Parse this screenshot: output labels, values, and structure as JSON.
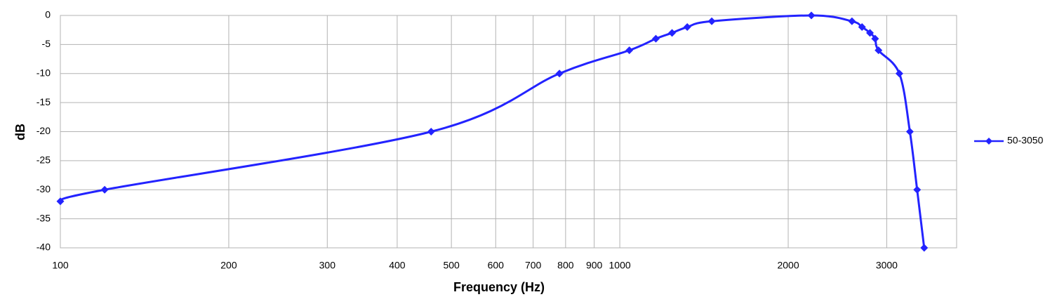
{
  "chart_data": {
    "type": "line",
    "x_label": "Frequency (Hz)",
    "y_label": "dB",
    "x": [
      100,
      120,
      460,
      780,
      1040,
      1160,
      1240,
      1320,
      1460,
      2200,
      2600,
      2710,
      2800,
      2860,
      2900,
      3160,
      3300,
      3400,
      3500
    ],
    "series": [
      {
        "name": "50-3050",
        "color": "#2323ff",
        "values": [
          -32,
          -30,
          -20,
          -10,
          -6,
          -4,
          -3,
          -2,
          -1,
          0,
          -1,
          -2,
          -3,
          -4,
          -6,
          -10,
          -20,
          -30,
          -40
        ]
      }
    ],
    "xscale": "log",
    "xlim": [
      100,
      4000
    ],
    "xticks": [
      100,
      200,
      300,
      400,
      500,
      600,
      700,
      800,
      900,
      1000,
      2000,
      3000
    ],
    "ylim": [
      -40,
      0
    ],
    "yticks": [
      0,
      -5,
      -10,
      -15,
      -20,
      -25,
      -30,
      -35,
      -40
    ],
    "grid": true,
    "legend": "right"
  }
}
